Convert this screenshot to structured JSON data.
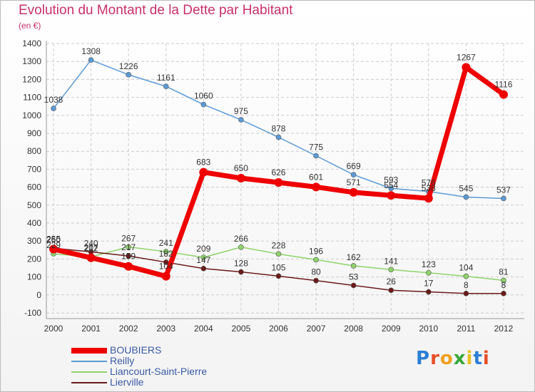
{
  "title": "Evolution du Montant de la Dette par Habitant",
  "subtitle": "(en €)",
  "logo": {
    "text": "Proxiti",
    "colors": [
      "#2a7fd4",
      "#e8502a",
      "#f0a020",
      "#38a838",
      "#e8c020",
      "#2a7fd4",
      "#e8502a"
    ]
  },
  "chart_data": {
    "type": "line",
    "title": "Evolution du Montant de la Dette par Habitant",
    "subtitle": "(en €)",
    "xlabel": "",
    "ylabel": "",
    "ylim": [
      -100,
      1400
    ],
    "yticks": [
      -100,
      0,
      100,
      200,
      300,
      400,
      500,
      600,
      700,
      800,
      900,
      1000,
      1100,
      1200,
      1300,
      1400
    ],
    "categories": [
      "2000",
      "2001",
      "2002",
      "2003",
      "2004",
      "2005",
      "2006",
      "2007",
      "2008",
      "2009",
      "2010",
      "2011",
      "2012"
    ],
    "grid": true,
    "legend_position": "bottom-left",
    "series": [
      {
        "name": "BOUBIERS",
        "color": "#ee0000",
        "highlight": true,
        "values": [
          255,
          207,
          159,
          104,
          683,
          650,
          626,
          601,
          571,
          554,
          538,
          1267,
          1116
        ],
        "labels": [
          "255",
          "207",
          "159",
          "104",
          "683",
          "650",
          "626",
          "601",
          "571",
          "554",
          "538",
          "1267",
          "1116"
        ]
      },
      {
        "name": "Reilly",
        "color": "#5b9bd5",
        "highlight": false,
        "values": [
          1038,
          1308,
          1226,
          1161,
          1060,
          975,
          878,
          775,
          669,
          593,
          576,
          545,
          537
        ],
        "labels": [
          "1038",
          "1308",
          "1226",
          "1161",
          "1060",
          "975",
          "878",
          "775",
          "669",
          "593",
          "576",
          "545",
          "537"
        ]
      },
      {
        "name": "Liancourt-Saint-Pierre",
        "color": "#8ed36a",
        "highlight": false,
        "values": [
          229,
          212,
          267,
          241,
          209,
          266,
          228,
          196,
          162,
          141,
          123,
          104,
          81
        ],
        "labels": [
          "229",
          "212",
          "267",
          "241",
          "209",
          "266",
          "228",
          "196",
          "162",
          "141",
          "123",
          "104",
          "81"
        ]
      },
      {
        "name": "Lierville",
        "color": "#6b1a1a",
        "highlight": false,
        "values": [
          260,
          240,
          217,
          182,
          147,
          128,
          105,
          80,
          53,
          26,
          17,
          8,
          8
        ],
        "labels": [
          "260",
          "240",
          "217",
          "182",
          "147",
          "128",
          "105",
          "80",
          "53",
          "26",
          "17",
          "8",
          "8"
        ]
      }
    ]
  }
}
